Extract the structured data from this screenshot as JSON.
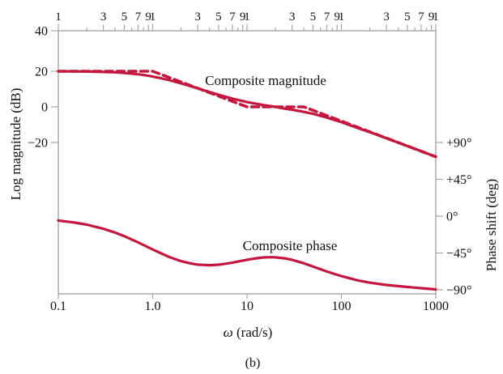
{
  "figure": {
    "caption": "(b)",
    "magnitude_curve_label": "Composite magnitude",
    "phase_curve_label": "Composite phase"
  },
  "axes": {
    "left": {
      "title": "Log magnitude (dB)",
      "tick_labels": [
        "40",
        "20",
        "0",
        "−20"
      ]
    },
    "right": {
      "title": "Phase shift (deg)",
      "tick_labels": [
        "+90°",
        "+45°",
        "0°",
        "−45°",
        "−90°"
      ]
    },
    "bottom": {
      "title_symbol": "ω",
      "title_units": " (rad/s)",
      "tick_labels": [
        "0.1",
        "1.0",
        "10",
        "100",
        "1000"
      ]
    },
    "top": {
      "decade_label": "1",
      "multiplier_labels": [
        "3",
        "5",
        "7",
        "9"
      ]
    }
  },
  "colors": {
    "curve": "#c31740",
    "axis": "#a6a6a6",
    "text": "#111111"
  },
  "chart_data": {
    "type": "line",
    "title": "",
    "xlabel": "ω (rad/s)",
    "x_scale": "log",
    "x_range": [
      0.1,
      1000
    ],
    "y_left_label": "Log magnitude (dB)",
    "y_left_ticks_db": [
      40,
      20,
      0,
      -20
    ],
    "y_right_label": "Phase shift (deg)",
    "y_right_ticks_deg": [
      90,
      45,
      0,
      -45,
      -90
    ],
    "grid": false,
    "legend": "inline-text-labels",
    "series": [
      {
        "name": "Composite magnitude",
        "axis": "dB",
        "style": "solid",
        "points": [
          [
            0.1,
            20
          ],
          [
            0.15,
            19.9
          ],
          [
            0.2,
            19.8
          ],
          [
            0.3,
            19.6
          ],
          [
            0.4,
            19.4
          ],
          [
            0.5,
            19
          ],
          [
            0.7,
            18.3
          ],
          [
            0.85,
            17.7
          ],
          [
            1,
            17
          ],
          [
            1.2,
            16.2
          ],
          [
            1.5,
            15
          ],
          [
            2,
            13.2
          ],
          [
            2.5,
            11.7
          ],
          [
            3,
            10.4
          ],
          [
            4,
            8.3
          ],
          [
            5,
            6.8
          ],
          [
            6,
            5.6
          ],
          [
            7,
            4.6
          ],
          [
            8,
            3.9
          ],
          [
            10,
            2.7
          ],
          [
            12,
            1.9
          ],
          [
            15,
            1
          ],
          [
            20,
            0
          ],
          [
            25,
            -1
          ],
          [
            30,
            -1.6
          ],
          [
            40,
            -2.8
          ],
          [
            50,
            -3.9
          ],
          [
            70,
            -6
          ],
          [
            100,
            -8.6
          ],
          [
            150,
            -11.9
          ],
          [
            200,
            -14.2
          ],
          [
            300,
            -17.6
          ],
          [
            500,
            -22
          ],
          [
            700,
            -24.9
          ],
          [
            1000,
            -28
          ]
        ]
      },
      {
        "name": "Straight-line approximation (dashed)",
        "axis": "dB",
        "style": "dashed",
        "points": [
          [
            0.1,
            20
          ],
          [
            1,
            20
          ],
          [
            10,
            0
          ],
          [
            40,
            0
          ],
          [
            100,
            -8
          ],
          [
            1000,
            -28
          ]
        ]
      },
      {
        "name": "Composite phase",
        "axis": "deg",
        "style": "solid",
        "points": [
          [
            0.1,
            -5.3
          ],
          [
            0.15,
            -7.9
          ],
          [
            0.2,
            -10.4
          ],
          [
            0.3,
            -15.4
          ],
          [
            0.4,
            -20.1
          ],
          [
            0.5,
            -24.4
          ],
          [
            0.7,
            -32
          ],
          [
            1,
            -40.7
          ],
          [
            1.5,
            -49.9
          ],
          [
            2,
            -55
          ],
          [
            2.5,
            -57.7
          ],
          [
            3,
            -59.2
          ],
          [
            4,
            -59.9
          ],
          [
            5,
            -59.3
          ],
          [
            6,
            -58.1
          ],
          [
            7,
            -56.8
          ],
          [
            8,
            -55.5
          ],
          [
            10,
            -53.3
          ],
          [
            12,
            -51.8
          ],
          [
            15,
            -50.4
          ],
          [
            18,
            -50.1
          ],
          [
            20,
            -50.3
          ],
          [
            25,
            -51.5
          ],
          [
            30,
            -53.4
          ],
          [
            40,
            -57.6
          ],
          [
            50,
            -61.5
          ],
          [
            70,
            -67.6
          ],
          [
            100,
            -73.3
          ],
          [
            150,
            -78.5
          ],
          [
            200,
            -81.3
          ],
          [
            300,
            -84.1
          ],
          [
            500,
            -86.5
          ],
          [
            700,
            -88
          ],
          [
            1000,
            -89.5
          ]
        ]
      }
    ]
  }
}
